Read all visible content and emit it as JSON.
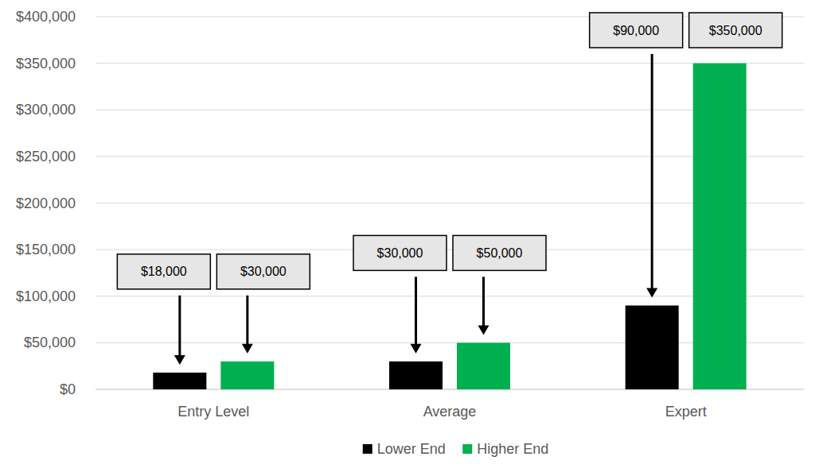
{
  "chart_data": {
    "type": "bar",
    "categories": [
      "Entry Level",
      "Average",
      "Expert"
    ],
    "series": [
      {
        "name": "Lower End",
        "color": "#000000",
        "values": [
          18000,
          30000,
          90000
        ],
        "value_labels": [
          "$18,000",
          "$30,000",
          "$90,000"
        ]
      },
      {
        "name": "Higher End",
        "color": "#00b050",
        "values": [
          30000,
          50000,
          350000
        ],
        "value_labels": [
          "$30,000",
          "$50,000",
          "$350,000"
        ]
      }
    ],
    "ylim": [
      0,
      400000
    ],
    "yticks": [
      {
        "value": 0,
        "label": "$0"
      },
      {
        "value": 50000,
        "label": "$50,000"
      },
      {
        "value": 100000,
        "label": "$100,000"
      },
      {
        "value": 150000,
        "label": "$150,000"
      },
      {
        "value": 200000,
        "label": "$200,000"
      },
      {
        "value": 250000,
        "label": "$250,000"
      },
      {
        "value": 300000,
        "label": "$300,000"
      },
      {
        "value": 350000,
        "label": "$350,000"
      },
      {
        "value": 400000,
        "label": "$400,000"
      }
    ],
    "grid": true,
    "legend": "bottom",
    "data_labels": true
  }
}
